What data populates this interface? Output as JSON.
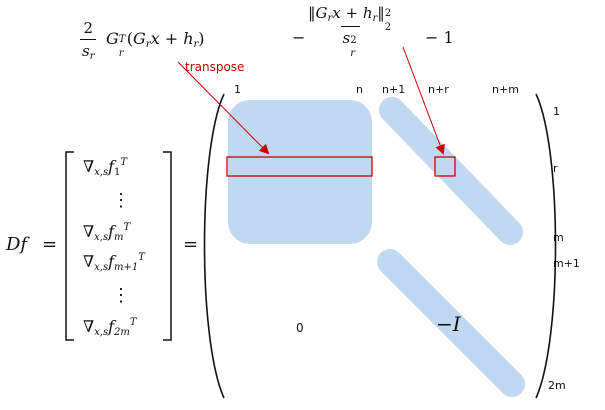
{
  "top_formulas": {
    "left_num": "2",
    "left_den_base": "s",
    "left_den_sub": "r",
    "left_G": "G",
    "left_G_sub": "r",
    "left_G_sup": "T",
    "left_paren_open": "(",
    "left_G2": "G",
    "left_G2_sub": "r",
    "left_x": "x + h",
    "left_h_sub": "r",
    "left_paren_close": ")",
    "right_minus": "−",
    "right_num_pre": "‖G",
    "right_num_G_sub": "r",
    "right_num_mid": "x + h",
    "right_num_h_sub": "r",
    "right_num_close": "‖",
    "right_num_sup": "2",
    "right_num_sub": "2",
    "right_den_base": "s",
    "right_den_sup": "2",
    "right_den_sub": "r",
    "right_tail": "− 1"
  },
  "annotation": {
    "transpose_label": "transpose"
  },
  "column_labels": [
    "1",
    "n",
    "n+1",
    "n+r",
    "n+m"
  ],
  "row_labels": [
    "1",
    "r",
    "m",
    "m+1",
    "2m"
  ],
  "lhs": {
    "D": "Df",
    "equals": "=",
    "equals2": "="
  },
  "vector_rows": [
    {
      "nabla": "∇",
      "sub": "x,s",
      "f": "f",
      "fsub": "1",
      "sup": "T"
    },
    {
      "nabla": "∇",
      "sub": "x,s",
      "f": "f",
      "fsub": "m",
      "sup": "T"
    },
    {
      "nabla": "∇",
      "sub": "x,s",
      "f": "f",
      "fsub": "m+1",
      "sup": "T"
    },
    {
      "nabla": "∇",
      "sub": "x,s",
      "f": "f",
      "fsub": "2m",
      "sup": "T"
    }
  ],
  "vdots": "⋮",
  "matrix_labels": {
    "zero_block": "0",
    "neg_identity": "−I"
  },
  "colors": {
    "block_fill": "#c0d8f0",
    "highlight_stroke": "#cc0000",
    "arrow_color": "#cc0000"
  }
}
